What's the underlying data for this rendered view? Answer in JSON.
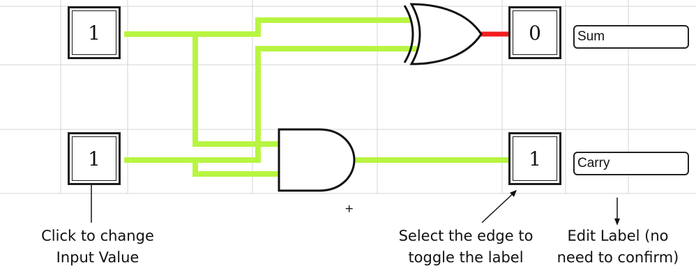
{
  "inputs": [
    {
      "id": "input-a",
      "value": "1"
    },
    {
      "id": "input-b",
      "value": "1"
    }
  ],
  "outputs": [
    {
      "id": "sum",
      "value": "0",
      "label": "Sum"
    },
    {
      "id": "carry",
      "value": "1",
      "label": "Carry"
    }
  ],
  "annotations": {
    "input_hint": [
      "Click  to change",
      "Input Value"
    ],
    "edge_hint": [
      "Select the edge to",
      "toggle the label"
    ],
    "label_hint": [
      "Edit Label (no",
      "need to confirm)"
    ]
  },
  "cursor_glyph": "+",
  "colors": {
    "wire_active": "#b8f542",
    "wire_inactive": "#f21e1e",
    "grid": "#d4d4d4",
    "outline": "#1c1c1c"
  },
  "gates": [
    "xor-gate",
    "and-gate"
  ]
}
